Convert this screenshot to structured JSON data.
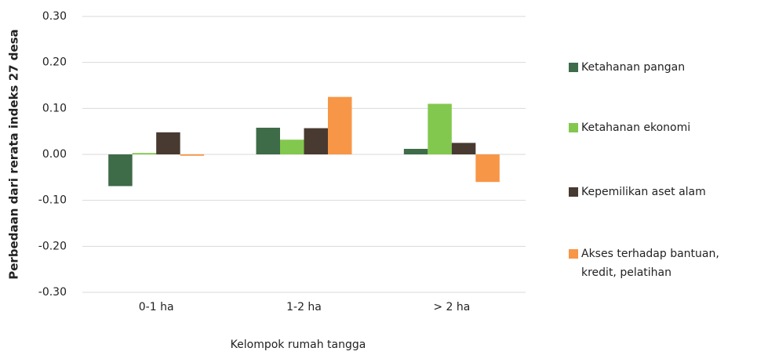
{
  "chart_data": {
    "type": "bar",
    "y_axis_label": "Perbedaan dari rerata indeks 27 desa",
    "x_axis_label": "Kelompok rumah tangga",
    "categories": [
      "0-1 ha",
      "1-2 ha",
      "> 2 ha"
    ],
    "series": [
      {
        "name": "Ketahanan pangan",
        "color": "#3e6b48",
        "values": [
          -0.069,
          0.058,
          0.012
        ]
      },
      {
        "name": "Ketahanan ekonomi",
        "color": "#82c84e",
        "values": [
          0.003,
          0.032,
          0.11
        ]
      },
      {
        "name": "Kepemilikan aset alam",
        "color": "#483a30",
        "values": [
          0.048,
          0.057,
          0.025
        ]
      },
      {
        "name": "Akses terhadap bantuan, kredit, pelatihan",
        "color": "#f79646",
        "values": [
          -0.003,
          0.125,
          -0.06
        ]
      }
    ],
    "ylim": [
      -0.3,
      0.3
    ],
    "yticks": [
      {
        "value": 0.3,
        "label": "0.30"
      },
      {
        "value": 0.2,
        "label": "0.20"
      },
      {
        "value": 0.1,
        "label": "0.10"
      },
      {
        "value": 0,
        "label": "0.00"
      },
      {
        "value": -0.1,
        "label": "-0.10"
      },
      {
        "value": -0.2,
        "label": "-0.20"
      },
      {
        "value": -0.3,
        "label": "-0.30"
      }
    ],
    "grid": true,
    "legend": "right"
  }
}
